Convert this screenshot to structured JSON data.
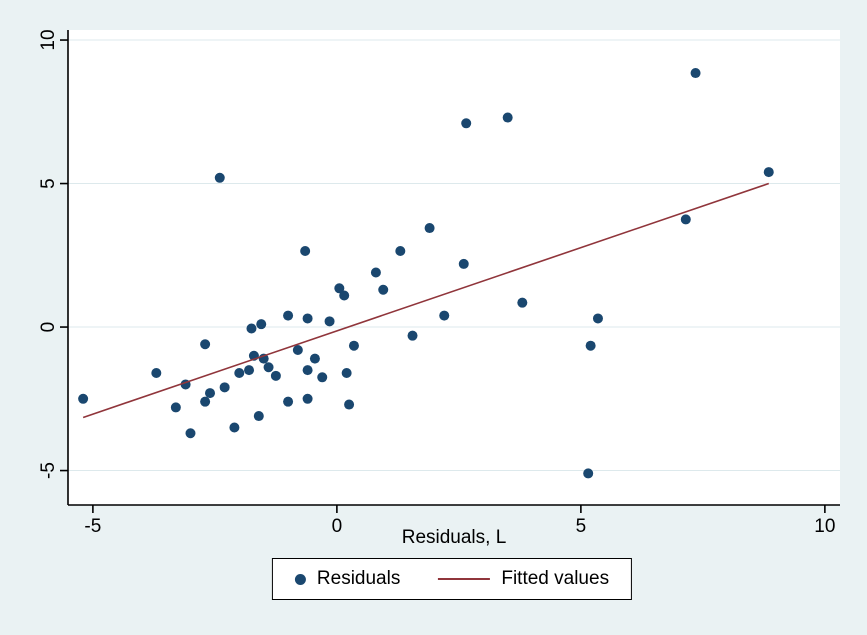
{
  "figure": {
    "background": "#eaf2f3",
    "plot_background": "#ffffff",
    "axis_color": "#000000",
    "grid_color": "#dde9ec"
  },
  "chart_data": {
    "type": "scatter",
    "title": "",
    "xlabel": "Residuals, L",
    "ylabel": "",
    "xlim": [
      -5.51,
      10.31
    ],
    "ylim": [
      -6.2,
      10.35
    ],
    "xticks": [
      -5,
      0,
      5,
      10
    ],
    "yticks": [
      -5,
      0,
      5,
      10
    ],
    "grid": "horizontal",
    "legend_position": "bottom",
    "series": [
      {
        "name": "Residuals",
        "type": "scatter",
        "color": "#1a476f",
        "marker": "dot",
        "points": [
          [
            -5.2,
            -2.5
          ],
          [
            -3.7,
            -1.6
          ],
          [
            -3.3,
            -2.8
          ],
          [
            -3.1,
            -2.0
          ],
          [
            -3.0,
            -3.7
          ],
          [
            -2.7,
            -2.6
          ],
          [
            -2.7,
            -0.6
          ],
          [
            -2.6,
            -2.3
          ],
          [
            -2.4,
            5.2
          ],
          [
            -2.3,
            -2.1
          ],
          [
            -2.1,
            -3.5
          ],
          [
            -2.0,
            -1.6
          ],
          [
            -1.8,
            -1.5
          ],
          [
            -1.75,
            -0.05
          ],
          [
            -1.7,
            -1.0
          ],
          [
            -1.6,
            -3.1
          ],
          [
            -1.55,
            0.1
          ],
          [
            -1.5,
            -1.1
          ],
          [
            -1.4,
            -1.4
          ],
          [
            -1.25,
            -1.7
          ],
          [
            -1.0,
            0.4
          ],
          [
            -1.0,
            -2.6
          ],
          [
            -0.8,
            -0.8
          ],
          [
            -0.65,
            2.65
          ],
          [
            -0.6,
            0.3
          ],
          [
            -0.6,
            -1.5
          ],
          [
            -0.6,
            -2.5
          ],
          [
            -0.45,
            -1.1
          ],
          [
            -0.3,
            -1.75
          ],
          [
            -0.15,
            0.2
          ],
          [
            0.05,
            1.35
          ],
          [
            0.15,
            1.1
          ],
          [
            0.2,
            -1.6
          ],
          [
            0.25,
            -2.7
          ],
          [
            0.35,
            -0.65
          ],
          [
            0.8,
            1.9
          ],
          [
            0.95,
            1.3
          ],
          [
            1.3,
            2.65
          ],
          [
            1.55,
            -0.3
          ],
          [
            1.9,
            3.45
          ],
          [
            2.2,
            0.4
          ],
          [
            2.6,
            2.2
          ],
          [
            2.65,
            7.1
          ],
          [
            3.5,
            7.3
          ],
          [
            3.8,
            0.85
          ],
          [
            5.15,
            -5.1
          ],
          [
            5.2,
            -0.65
          ],
          [
            5.35,
            0.3
          ],
          [
            7.15,
            3.75
          ],
          [
            7.35,
            8.85
          ],
          [
            8.85,
            5.4
          ]
        ]
      },
      {
        "name": "Fitted values",
        "type": "line",
        "color": "#90353b",
        "points": [
          [
            -5.2,
            -3.15
          ],
          [
            8.85,
            5.0
          ]
        ]
      }
    ]
  },
  "legend": {
    "items": [
      {
        "label": "Residuals",
        "marker": "dot",
        "color": "#1a476f"
      },
      {
        "label": "Fitted values",
        "marker": "line",
        "color": "#90353b"
      }
    ]
  }
}
